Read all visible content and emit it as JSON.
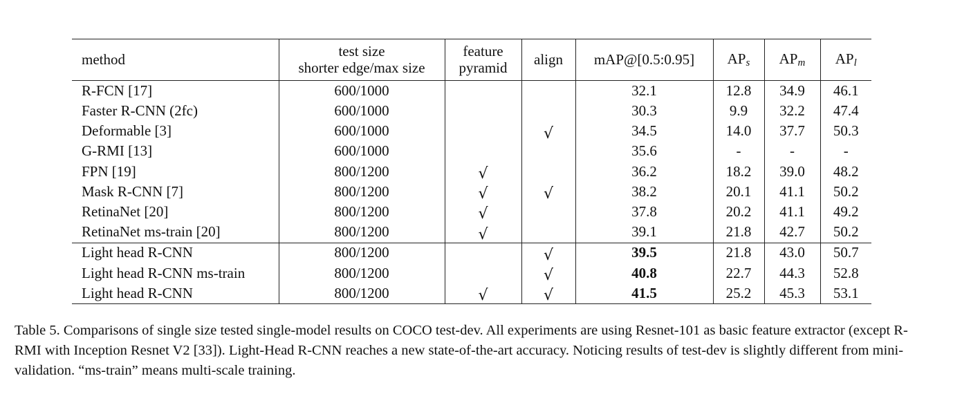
{
  "header": {
    "method": "method",
    "test_size_line1": "test size",
    "test_size_line2": "shorter edge/max size",
    "fp_line1": "feature",
    "fp_line2": "pyramid",
    "align": "align",
    "map": "mAP@[0.5:0.95]",
    "ap_base": "AP",
    "ap_s_sub": "s",
    "ap_m_sub": "m",
    "ap_l_sub": "l"
  },
  "check_symbol": "√",
  "rows": [
    {
      "method": "R-FCN [17]",
      "size": "600/1000",
      "fp": "",
      "align": "",
      "map": "32.1",
      "aps": "12.8",
      "apm": "34.9",
      "apl": "46.1"
    },
    {
      "method": "Faster R-CNN (2fc)",
      "size": "600/1000",
      "fp": "",
      "align": "",
      "map": "30.3",
      "aps": "9.9",
      "apm": "32.2",
      "apl": "47.4"
    },
    {
      "method": "Deformable [3]",
      "size": "600/1000",
      "fp": "",
      "align": "√",
      "map": "34.5",
      "aps": "14.0",
      "apm": "37.7",
      "apl": "50.3"
    },
    {
      "method": "G-RMI [13]",
      "size": "600/1000",
      "fp": "",
      "align": "",
      "map": "35.6",
      "aps": "-",
      "apm": "-",
      "apl": "-"
    },
    {
      "method": "FPN [19]",
      "size": "800/1200",
      "fp": "√",
      "align": "",
      "map": "36.2",
      "aps": "18.2",
      "apm": "39.0",
      "apl": "48.2"
    },
    {
      "method": "Mask R-CNN [7]",
      "size": "800/1200",
      "fp": "√",
      "align": "√",
      "map": "38.2",
      "aps": "20.1",
      "apm": "41.1",
      "apl": "50.2"
    },
    {
      "method": "RetinaNet [20]",
      "size": "800/1200",
      "fp": "√",
      "align": "",
      "map": "37.8",
      "aps": "20.2",
      "apm": "41.1",
      "apl": "49.2"
    },
    {
      "method": "RetinaNet ms-train [20]",
      "size": "800/1200",
      "fp": "√",
      "align": "",
      "map": "39.1",
      "aps": "21.8",
      "apm": "42.7",
      "apl": "50.2"
    },
    {
      "method": "Light head R-CNN",
      "size": "800/1200",
      "fp": "",
      "align": "√",
      "map": "39.5",
      "aps": "21.8",
      "apm": "43.0",
      "apl": "50.7"
    },
    {
      "method": "Light head R-CNN ms-train",
      "size": "800/1200",
      "fp": "",
      "align": "√",
      "map": "40.8",
      "aps": "22.7",
      "apm": "44.3",
      "apl": "52.8"
    },
    {
      "method": "Light head R-CNN",
      "size": "800/1200",
      "fp": "√",
      "align": "√",
      "map": "41.5",
      "aps": "25.2",
      "apm": "45.3",
      "apl": "53.1"
    }
  ],
  "caption": "Table 5. Comparisons of single size tested single-model results on COCO test-dev. All experiments are using Resnet-101 as basic feature extractor (except R-RMI with Inception Resnet V2 [33]). Light-Head R-CNN reaches a new state-of-the-art accuracy. Noticing results of test-dev is slightly different from mini-validation. “ms-train” means multi-scale training."
}
